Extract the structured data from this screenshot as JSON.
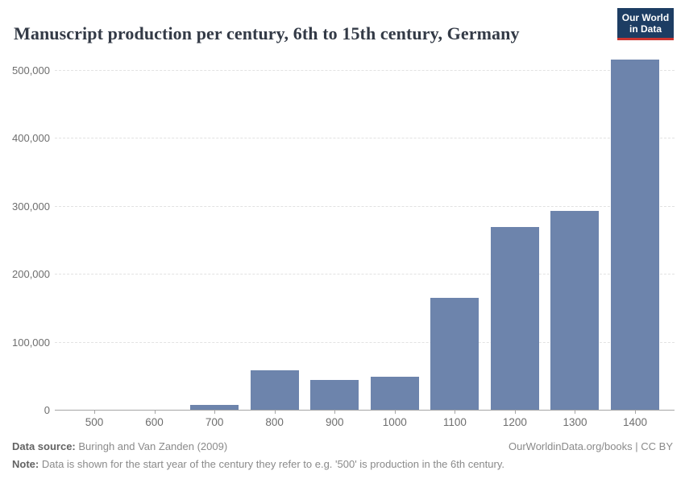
{
  "header": {
    "title": "Manuscript production per century, 6th to 15th century, Germany",
    "logo": {
      "line1": "Our World",
      "line2": "in Data",
      "bg_color": "#1d3d63",
      "accent_color": "#cc3530"
    }
  },
  "chart_data": {
    "type": "bar",
    "title": "Manuscript production per century, 6th to 15th century, Germany",
    "categories": [
      "500",
      "600",
      "700",
      "800",
      "900",
      "1000",
      "1100",
      "1200",
      "1300",
      "1400"
    ],
    "values": [
      0,
      0,
      7000,
      58000,
      44000,
      48000,
      165000,
      269000,
      293000,
      515000
    ],
    "xlabel": "",
    "ylabel": "",
    "ylim": [
      0,
      500000
    ],
    "ytick_interval": 100000,
    "ytick_labels": [
      "0",
      "100,000",
      "200,000",
      "300,000",
      "400,000",
      "500,000"
    ],
    "grid": "horizontal-dashed",
    "legend": "none",
    "bar_color": "#6d84ac",
    "axis_color": "#a5a5a5",
    "grid_color": "#e2e2e2",
    "tick_label_color": "#6e6e6e"
  },
  "footer": {
    "source_label": "Data source:",
    "source_value": "Buringh and Van Zanden (2009)",
    "note_label": "Note:",
    "note_value": "Data is shown for the start year of the century they refer to e.g. '500' is production in the 6th century.",
    "link": "OurWorldinData.org/books | CC BY"
  }
}
